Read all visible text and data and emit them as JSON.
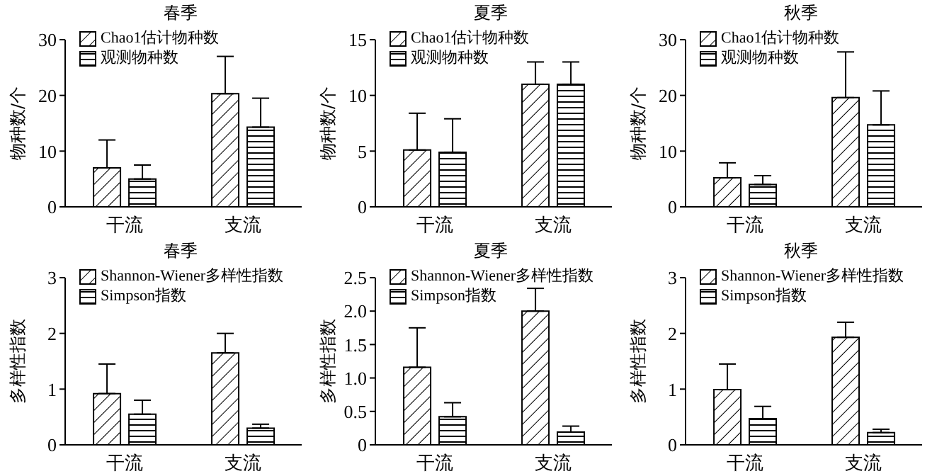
{
  "chart_data": [
    {
      "type": "bar",
      "title": "春季",
      "ylabel": "物种数/个",
      "categories": [
        "干流",
        "支流"
      ],
      "ylim": [
        0,
        30
      ],
      "yticks": [
        0,
        10,
        20,
        30
      ],
      "legend": "top left",
      "grid": false,
      "series": [
        {
          "name": "Chao1估计物种数",
          "color": "#000000",
          "values": [
            7,
            20.3
          ],
          "errors": [
            [
              7,
              12
            ],
            [
              20.3,
              27
            ]
          ]
        },
        {
          "name": "观测物种数",
          "color": "#000000",
          "values": [
            5,
            14.3
          ],
          "errors": [
            [
              5,
              7.5
            ],
            [
              14.3,
              19.5
            ]
          ]
        }
      ]
    },
    {
      "type": "bar",
      "title": "夏季",
      "ylabel": "物种数/个",
      "categories": [
        "干流",
        "支流"
      ],
      "ylim": [
        0,
        15
      ],
      "yticks": [
        0,
        5,
        10,
        15
      ],
      "legend": "top left",
      "grid": false,
      "series": [
        {
          "name": "Chao1估计物种数",
          "color": "#000000",
          "values": [
            5.1,
            11
          ],
          "errors": [
            [
              5.1,
              8.4
            ],
            [
              11,
              13
            ]
          ]
        },
        {
          "name": "观测物种数",
          "color": "#000000",
          "values": [
            4.9,
            11
          ],
          "errors": [
            [
              4.9,
              7.9
            ],
            [
              11,
              13
            ]
          ]
        }
      ]
    },
    {
      "type": "bar",
      "title": "秋季",
      "ylabel": "物种数/个",
      "categories": [
        "干流",
        "支流"
      ],
      "ylim": [
        0,
        30
      ],
      "yticks": [
        0,
        10,
        20,
        30
      ],
      "legend": "top left",
      "grid": false,
      "series": [
        {
          "name": "Chao1估计物种数",
          "color": "#000000",
          "values": [
            5.2,
            19.6
          ],
          "errors": [
            [
              5.2,
              7.9
            ],
            [
              19.6,
              27.8
            ]
          ]
        },
        {
          "name": "观测物种数",
          "color": "#000000",
          "values": [
            4,
            14.7
          ],
          "errors": [
            [
              4,
              5.6
            ],
            [
              14.7,
              20.8
            ]
          ]
        }
      ]
    },
    {
      "type": "bar",
      "title": "春季",
      "ylabel": "多样性指数",
      "categories": [
        "干流",
        "支流"
      ],
      "ylim": [
        0,
        3
      ],
      "yticks": [
        0,
        1,
        2,
        3
      ],
      "legend": "top left",
      "grid": false,
      "series": [
        {
          "name": "Shannon-Wiener多样性指数",
          "color": "#000000",
          "values": [
            0.92,
            1.65
          ],
          "errors": [
            [
              0.92,
              1.45
            ],
            [
              1.65,
              2
            ]
          ]
        },
        {
          "name": "Simpson指数",
          "color": "#000000",
          "values": [
            0.55,
            0.3
          ],
          "errors": [
            [
              0.55,
              0.8
            ],
            [
              0.3,
              0.37
            ]
          ]
        }
      ]
    },
    {
      "type": "bar",
      "title": "夏季",
      "ylabel": "多样性指数",
      "categories": [
        "干流",
        "支流"
      ],
      "ylim": [
        0,
        2.5
      ],
      "yticks": [
        0,
        0.5,
        {
          "value": 1,
          "label": "1.0"
        },
        1.5,
        {
          "value": 2,
          "label": "2.0"
        },
        2.5
      ],
      "legend": "top left",
      "grid": false,
      "series": [
        {
          "name": "Shannon-Wiener多样性指数",
          "color": "#000000",
          "values": [
            1.16,
            2
          ],
          "errors": [
            [
              1.16,
              1.75
            ],
            [
              2,
              2.34
            ]
          ]
        },
        {
          "name": "Simpson指数",
          "color": "#000000",
          "values": [
            0.42,
            0.19
          ],
          "errors": [
            [
              0.42,
              0.63
            ],
            [
              0.19,
              0.28
            ]
          ]
        }
      ]
    },
    {
      "type": "bar",
      "title": "秋季",
      "ylabel": "多样性指数",
      "categories": [
        "干流",
        "支流"
      ],
      "ylim": [
        0,
        3
      ],
      "yticks": [
        0,
        1,
        2,
        3
      ],
      "legend": "top left",
      "grid": false,
      "series": [
        {
          "name": "Shannon-Wiener多样性指数",
          "color": "#000000",
          "values": [
            0.99,
            1.93
          ],
          "errors": [
            [
              0.99,
              1.45
            ],
            [
              1.93,
              2.2
            ]
          ]
        },
        {
          "name": "Simpson指数",
          "color": "#000000",
          "values": [
            0.47,
            0.22
          ],
          "errors": [
            [
              0.47,
              0.69
            ],
            [
              0.22,
              0.28
            ]
          ]
        }
      ]
    }
  ]
}
